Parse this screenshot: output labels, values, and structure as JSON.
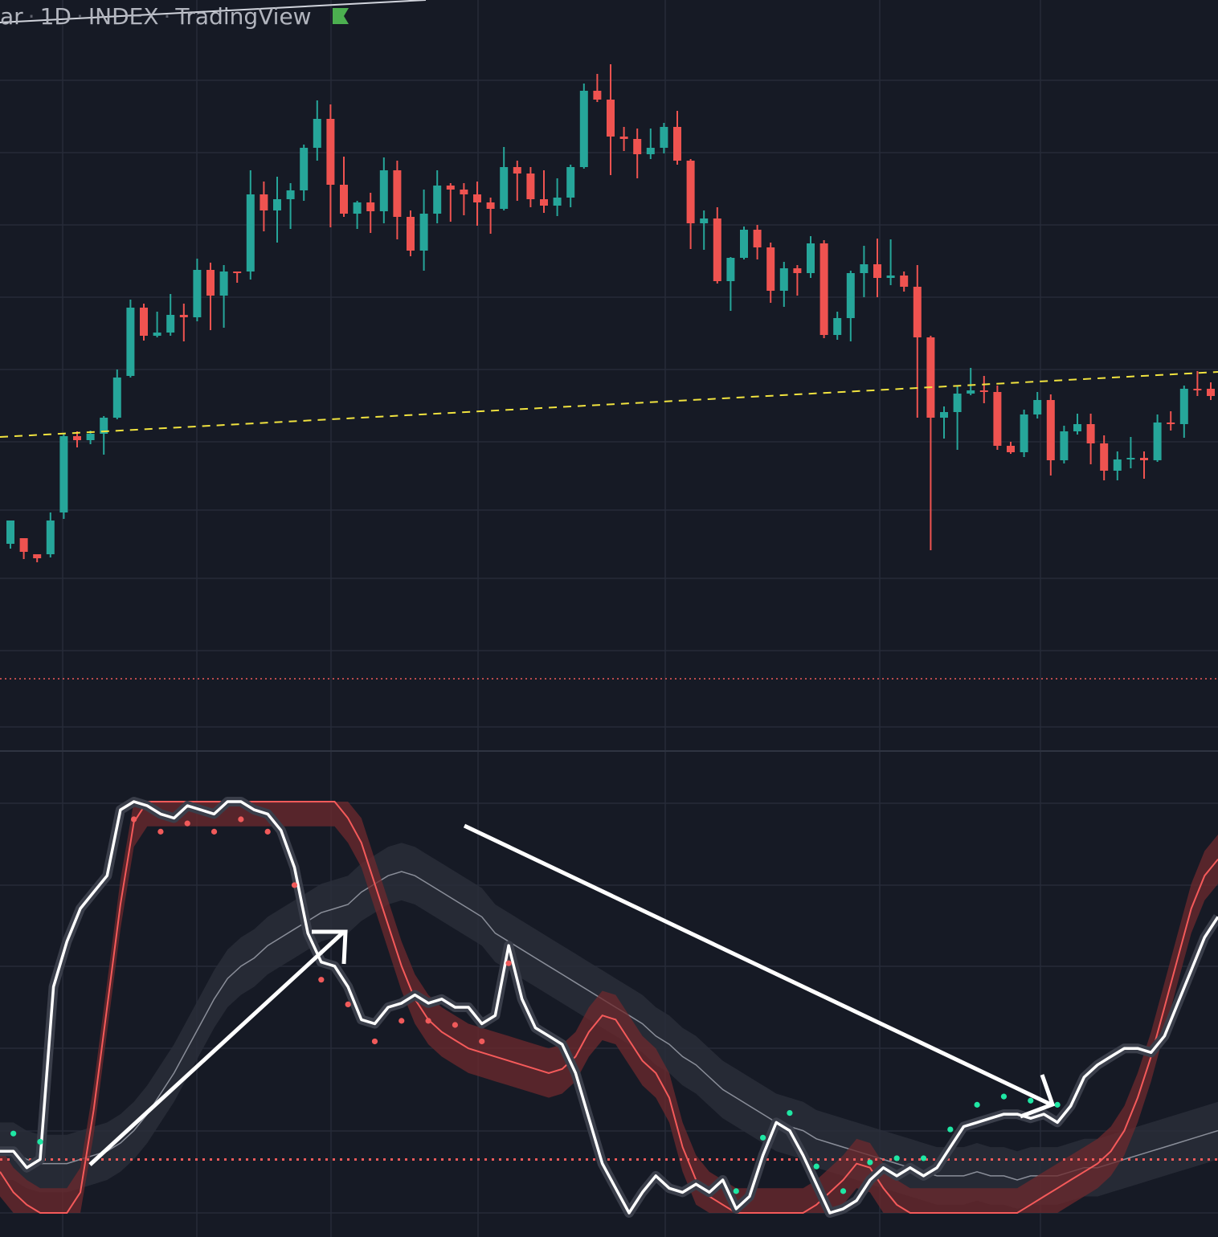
{
  "header": {
    "symbol_fragment": "ar",
    "separator": "·",
    "interval": "1D",
    "exchange": "INDEX",
    "source": "TradingView"
  },
  "colors": {
    "background": "#161a25",
    "grid": "#262b38",
    "up": "#26a69a",
    "down": "#ef5350",
    "trendline": "#f1e33f",
    "level_line": "#f05a5a",
    "main_line": "#ffffff",
    "signal_line": "#f55a5a",
    "slow_line": "#8a8e99",
    "band_fill": "#2a2e39",
    "red_fill": "#6e2a2e",
    "dot_red": "#f05a5a",
    "dot_green": "#1fe7a4",
    "arrow": "#ffffff",
    "flag": "#4caf50"
  },
  "icons": [
    "flag-icon"
  ],
  "chart_data": [
    {
      "type": "candlestick",
      "title": "",
      "series": [
        {
          "name": "",
          "ohlc": [
            [
              677,
              648,
              683,
              667
            ],
            [
              670,
              687,
              696,
              690
            ],
            [
              690,
              695,
              700,
              690
            ],
            [
              690,
              648,
              694,
              638
            ],
            [
              638,
              543,
              646,
              540
            ],
            [
              543,
              548,
              557,
              537
            ],
            [
              548,
              540,
              553,
              536
            ],
            [
              540,
              520,
              566,
              518
            ],
            [
              520,
              470,
              522,
              460
            ],
            [
              468,
              383,
              470,
              373
            ],
            [
              383,
              418,
              424,
              378
            ],
            [
              418,
              414,
              420,
              388
            ],
            [
              414,
              392,
              418,
              366
            ],
            [
              392,
              395,
              425,
              378
            ],
            [
              395,
              336,
              400,
              322
            ],
            [
              336,
              368,
              411,
              327
            ],
            [
              368,
              338,
              408,
              330
            ],
            [
              338,
              338,
              352,
              338
            ],
            [
              338,
              242,
              348,
              212
            ],
            [
              242,
              262,
              288,
              226
            ],
            [
              262,
              248,
              302,
              220
            ],
            [
              248,
              237,
              285,
              228
            ],
            [
              237,
              184,
              250,
              180
            ],
            [
              184,
              148,
              200,
              125
            ],
            [
              148,
              230,
              283,
              130
            ],
            [
              230,
              266,
              270,
              195
            ],
            [
              266,
              252,
              285,
              250
            ],
            [
              252,
              263,
              290,
              240
            ],
            [
              263,
              212,
              278,
              196
            ],
            [
              212,
              270,
              298,
              200
            ],
            [
              270,
              312,
              319,
              262
            ],
            [
              312,
              266,
              337,
              236
            ],
            [
              266,
              231,
              278,
              212
            ],
            [
              231,
              236,
              276,
              228
            ],
            [
              236,
              242,
              268,
              228
            ],
            [
              242,
              252,
              281,
              226
            ],
            [
              252,
              260,
              291,
              246
            ],
            [
              260,
              208,
              262,
              183
            ],
            [
              208,
              216,
              250,
              200
            ],
            [
              216,
              248,
              258,
              208
            ],
            [
              248,
              256,
              265,
              212
            ],
            [
              256,
              246,
              269,
              222
            ],
            [
              246,
              208,
              258,
              205
            ],
            [
              208,
              113,
              210,
              104
            ],
            [
              113,
              124,
              127,
              92
            ],
            [
              124,
              170,
              218,
              80
            ],
            [
              170,
              173,
              188,
              158
            ],
            [
              173,
              192,
              222,
              160
            ],
            [
              192,
              184,
              198,
              160
            ],
            [
              184,
              158,
              191,
              153
            ],
            [
              158,
              200,
              205,
              138
            ],
            [
              200,
              278,
              310,
              198
            ],
            [
              278,
              272,
              311,
              262
            ],
            [
              272,
              350,
              353,
              258
            ],
            [
              350,
              321,
              387,
              320
            ],
            [
              321,
              286,
              323,
              282
            ],
            [
              286,
              308,
              323,
              280
            ],
            [
              308,
              362,
              377,
              302
            ],
            [
              362,
              334,
              382,
              326
            ],
            [
              334,
              340,
              368,
              330
            ],
            [
              340,
              303,
              346,
              294
            ],
            [
              303,
              417,
              421,
              299
            ],
            [
              417,
              396,
              423,
              388
            ],
            [
              396,
              340,
              425,
              337
            ],
            [
              340,
              329,
              370,
              306
            ],
            [
              329,
              346,
              370,
              297
            ],
            [
              346,
              343,
              355,
              298
            ],
            [
              343,
              357,
              363,
              338
            ],
            [
              357,
              420,
              520,
              330
            ],
            [
              420,
              520,
              685,
              418
            ],
            [
              520,
              513,
              546,
              506
            ],
            [
              513,
              490,
              560,
              480
            ],
            [
              490,
              486,
              492,
              458
            ],
            [
              486,
              488,
              502,
              468
            ],
            [
              488,
              555,
              560,
              480
            ],
            [
              555,
              563,
              565,
              550
            ],
            [
              563,
              516,
              569,
              510
            ],
            [
              516,
              498,
              521,
              488
            ],
            [
              498,
              573,
              592,
              491
            ],
            [
              573,
              537,
              577,
              530
            ],
            [
              537,
              528,
              541,
              515
            ],
            [
              528,
              552,
              578,
              515
            ],
            [
              552,
              586,
              598,
              542
            ],
            [
              586,
              572,
              598,
              562
            ],
            [
              572,
              570,
              583,
              544
            ],
            [
              570,
              573,
              596,
              562
            ],
            [
              573,
              526,
              575,
              516
            ],
            [
              526,
              528,
              536,
              512
            ],
            [
              528,
              484,
              545,
              480
            ],
            [
              484,
              484,
              493,
              462
            ],
            [
              484,
              493,
              498,
              476
            ],
            [
              493,
              483,
              497,
              481
            ]
          ]
        }
      ]
    },
    {
      "type": "line",
      "title": "",
      "ylim": [
        0,
        1
      ],
      "series": [
        {
          "name": "",
          "values": [
            0.15,
            0.15,
            0.13,
            0.12,
            0.12,
            0.12,
            0.13,
            0.14,
            0.15,
            0.17,
            0.2,
            0.24,
            0.29,
            0.34,
            0.4,
            0.46,
            0.52,
            0.57,
            0.6,
            0.62,
            0.65,
            0.67,
            0.69,
            0.71,
            0.73,
            0.74,
            0.75,
            0.78,
            0.8,
            0.82,
            0.83,
            0.82,
            0.8,
            0.78,
            0.76,
            0.74,
            0.72,
            0.68,
            0.66,
            0.64,
            0.62,
            0.6,
            0.58,
            0.56,
            0.54,
            0.52,
            0.5,
            0.48,
            0.46,
            0.43,
            0.41,
            0.38,
            0.36,
            0.33,
            0.3,
            0.28,
            0.26,
            0.24,
            0.22,
            0.21,
            0.2,
            0.18,
            0.17,
            0.16,
            0.15,
            0.14,
            0.13,
            0.12,
            0.11,
            0.1,
            0.09,
            0.09,
            0.09,
            0.1,
            0.09,
            0.09,
            0.08,
            0.09,
            0.09,
            0.09,
            0.1,
            0.11,
            0.11,
            0.12,
            0.13,
            0.14,
            0.15,
            0.16,
            0.17,
            0.18,
            0.19,
            0.2
          ]
        },
        {
          "name": "",
          "values": [
            0.1,
            0.05,
            0.02,
            0.0,
            0.0,
            0.0,
            0.05,
            0.25,
            0.5,
            0.75,
            0.95,
            1.0,
            1.0,
            1.0,
            1.0,
            1.0,
            1.0,
            1.0,
            1.0,
            1.0,
            1.0,
            1.0,
            1.0,
            1.0,
            1.0,
            1.0,
            0.96,
            0.9,
            0.8,
            0.7,
            0.6,
            0.52,
            0.47,
            0.44,
            0.42,
            0.4,
            0.39,
            0.38,
            0.37,
            0.36,
            0.35,
            0.34,
            0.35,
            0.38,
            0.44,
            0.48,
            0.47,
            0.42,
            0.37,
            0.34,
            0.28,
            0.16,
            0.08,
            0.04,
            0.02,
            0.0,
            0.0,
            0.0,
            0.0,
            0.0,
            0.0,
            0.02,
            0.05,
            0.08,
            0.12,
            0.11,
            0.06,
            0.02,
            0.0,
            0.0,
            0.0,
            0.0,
            0.0,
            0.0,
            0.0,
            0.0,
            0.0,
            0.02,
            0.04,
            0.06,
            0.08,
            0.1,
            0.12,
            0.15,
            0.2,
            0.28,
            0.38,
            0.5,
            0.62,
            0.74,
            0.82,
            0.86
          ]
        },
        {
          "name": "",
          "values": [
            0.15,
            0.15,
            0.11,
            0.13,
            0.55,
            0.66,
            0.74,
            0.78,
            0.82,
            0.98,
            1.0,
            0.99,
            0.97,
            0.96,
            0.99,
            0.98,
            0.97,
            1.0,
            1.0,
            0.98,
            0.97,
            0.93,
            0.84,
            0.68,
            0.61,
            0.6,
            0.55,
            0.47,
            0.46,
            0.5,
            0.51,
            0.53,
            0.51,
            0.52,
            0.5,
            0.5,
            0.46,
            0.48,
            0.65,
            0.52,
            0.45,
            0.43,
            0.41,
            0.34,
            0.23,
            0.12,
            0.06,
            0.0,
            0.05,
            0.09,
            0.06,
            0.05,
            0.07,
            0.05,
            0.08,
            0.01,
            0.04,
            0.14,
            0.22,
            0.2,
            0.14,
            0.07,
            0.0,
            0.01,
            0.03,
            0.08,
            0.11,
            0.09,
            0.11,
            0.09,
            0.11,
            0.16,
            0.21,
            0.22,
            0.23,
            0.24,
            0.24,
            0.23,
            0.24,
            0.22,
            0.26,
            0.33,
            0.36,
            0.38,
            0.4,
            0.4,
            0.39,
            0.43,
            0.51,
            0.59,
            0.67,
            0.72
          ]
        }
      ],
      "levels": [
        0.13
      ]
    }
  ]
}
